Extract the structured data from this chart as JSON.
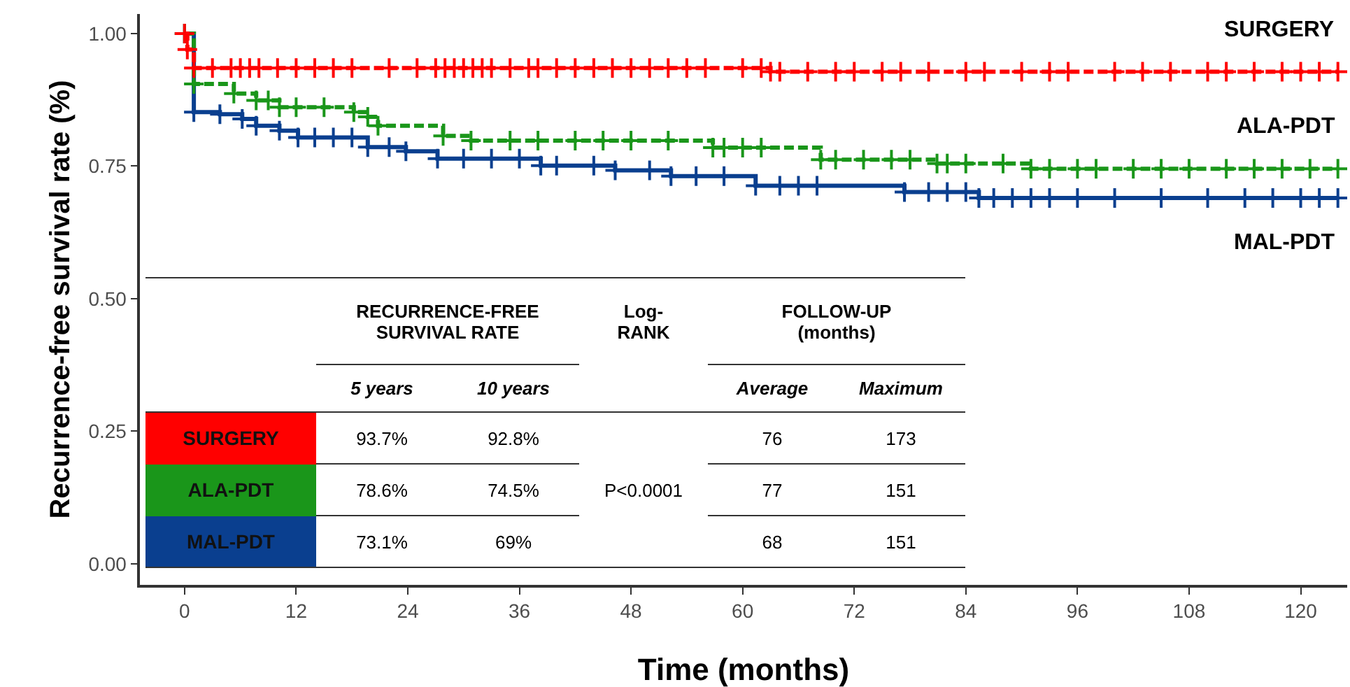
{
  "chart_data": {
    "type": "step",
    "xlabel": "Time (months)",
    "ylabel": "Recurrence-free survival rate (%)",
    "xlim": [
      -4.8,
      125
    ],
    "xticks": [
      0,
      12,
      24,
      36,
      48,
      60,
      72,
      84,
      96,
      108,
      120
    ],
    "ylim": [
      -0.04,
      1.037
    ],
    "yticks": [
      {
        "value": 0,
        "label": "0.00"
      },
      {
        "value": 0.25,
        "label": "0.25"
      },
      {
        "value": 0.5,
        "label": "0.50"
      },
      {
        "value": 0.75,
        "label": "0.75"
      },
      {
        "value": 1,
        "label": "1.00"
      }
    ],
    "grid": false,
    "legend": false,
    "marker": "cross",
    "series": [
      {
        "name": "SURGERY",
        "color": "#ff0000",
        "line_style": "dashed",
        "x": [
          0,
          0.3,
          1,
          3,
          5,
          6,
          7,
          8,
          10,
          12,
          14,
          16,
          18,
          22,
          25,
          27,
          28,
          29,
          30,
          31,
          32,
          33,
          35,
          37,
          38,
          40,
          42,
          44,
          46,
          48,
          50,
          52,
          54,
          56,
          60,
          62,
          63,
          64,
          67,
          70,
          72,
          75,
          77,
          80,
          84,
          86,
          90,
          93,
          95,
          100,
          103,
          106,
          110,
          112,
          115,
          118,
          120,
          122,
          124
        ],
        "values": [
          1,
          0.97,
          0.935,
          0.935,
          0.935,
          0.935,
          0.935,
          0.935,
          0.935,
          0.935,
          0.935,
          0.935,
          0.935,
          0.935,
          0.935,
          0.935,
          0.935,
          0.935,
          0.935,
          0.935,
          0.935,
          0.935,
          0.935,
          0.935,
          0.935,
          0.935,
          0.935,
          0.935,
          0.935,
          0.935,
          0.935,
          0.935,
          0.935,
          0.935,
          0.935,
          0.935,
          0.928,
          0.928,
          0.928,
          0.928,
          0.928,
          0.928,
          0.928,
          0.928,
          0.928,
          0.928,
          0.928,
          0.928,
          0.928,
          0.928,
          0.928,
          0.928,
          0.928,
          0.928,
          0.928,
          0.928,
          0.928,
          0.928,
          0.928
        ]
      },
      {
        "name": "ALA-PDT",
        "color": "#1a961a",
        "line_style": "dashed",
        "x": [
          0,
          1,
          5.3,
          7.7,
          9,
          10.2,
          12,
          15,
          18.2,
          19.7,
          20.8,
          27.8,
          30.8,
          35,
          38,
          42,
          45,
          48,
          52,
          56.8,
          58,
          60,
          62,
          68.4,
          70,
          73,
          76,
          78,
          80.9,
          82,
          84,
          88,
          91,
          93,
          96,
          98,
          102,
          105,
          108,
          112,
          115,
          118,
          121,
          124
        ],
        "values": [
          1,
          0.905,
          0.887,
          0.874,
          0.874,
          0.861,
          0.861,
          0.861,
          0.852,
          0.843,
          0.826,
          0.807,
          0.798,
          0.798,
          0.798,
          0.798,
          0.798,
          0.798,
          0.798,
          0.785,
          0.785,
          0.785,
          0.785,
          0.762,
          0.762,
          0.762,
          0.762,
          0.762,
          0.755,
          0.755,
          0.755,
          0.755,
          0.745,
          0.745,
          0.745,
          0.745,
          0.745,
          0.745,
          0.745,
          0.745,
          0.745,
          0.745,
          0.745,
          0.745
        ]
      },
      {
        "name": "MAL-PDT",
        "color": "#0a3f8f",
        "line_style": "solid",
        "x": [
          0,
          1,
          3.8,
          6.2,
          7.7,
          10.2,
          12.2,
          14,
          16,
          18,
          19.7,
          22,
          23.8,
          27.2,
          30,
          33,
          36,
          38.3,
          40,
          44,
          46.3,
          50,
          52.3,
          55,
          58,
          61.4,
          64,
          66,
          68,
          77.4,
          80,
          82,
          84,
          85.4,
          87,
          89,
          91,
          93,
          96,
          100,
          105,
          110,
          114,
          117,
          120,
          122,
          124
        ],
        "values": [
          1,
          0.852,
          0.848,
          0.839,
          0.826,
          0.817,
          0.804,
          0.804,
          0.804,
          0.804,
          0.786,
          0.786,
          0.778,
          0.764,
          0.764,
          0.764,
          0.764,
          0.751,
          0.751,
          0.751,
          0.742,
          0.742,
          0.731,
          0.731,
          0.731,
          0.713,
          0.713,
          0.713,
          0.713,
          0.701,
          0.701,
          0.701,
          0.701,
          0.69,
          0.69,
          0.69,
          0.69,
          0.69,
          0.69,
          0.69,
          0.69,
          0.69,
          0.69,
          0.69,
          0.69,
          0.69,
          0.69
        ]
      }
    ],
    "annotations": [
      "RECURRENCE-FREE SURVIVAL RATE",
      "Log-RANK",
      "FOLLOW-UP (months)",
      "5 years",
      "10 years",
      "Average",
      "Maximum",
      "93.7%",
      "92.8%",
      "76",
      "173",
      "78.6%",
      "74.5%",
      "77",
      "151",
      "73.1%",
      "69%",
      "68",
      "151",
      "P<0.0001"
    ]
  }
}
